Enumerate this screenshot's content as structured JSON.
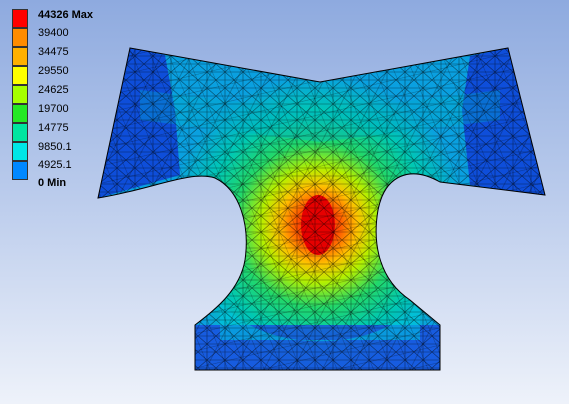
{
  "legend": {
    "levels": [
      {
        "label": "44326 Max",
        "color": "#ff0000",
        "bold": true
      },
      {
        "label": "39400",
        "color": "#ff8c00",
        "bold": false
      },
      {
        "label": "34475",
        "color": "#ffb000",
        "bold": false
      },
      {
        "label": "29550",
        "color": "#ffff00",
        "bold": false
      },
      {
        "label": "24625",
        "color": "#a6ff00",
        "bold": false
      },
      {
        "label": "19700",
        "color": "#24e824",
        "bold": false
      },
      {
        "label": "14775",
        "color": "#00e6a0",
        "bold": false
      },
      {
        "label": "9850.1",
        "color": "#00e6e6",
        "bold": false
      },
      {
        "label": "4925.1",
        "color": "#0088ff",
        "bold": false
      },
      {
        "label": "0 Min",
        "color": "#0000cc",
        "bold": true
      }
    ]
  }
}
